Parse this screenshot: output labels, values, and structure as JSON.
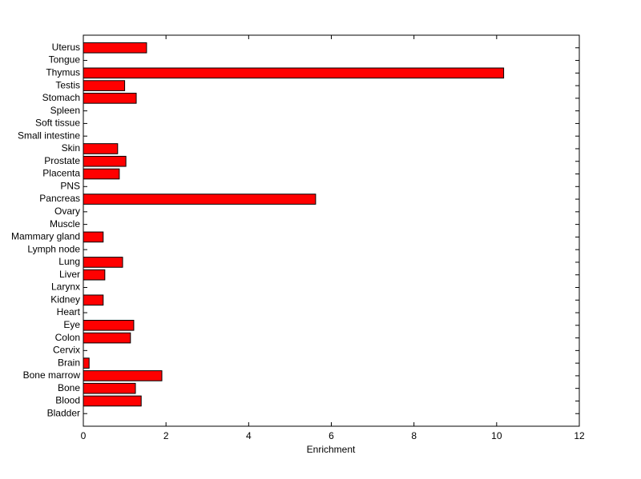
{
  "chart_data": {
    "type": "barh",
    "xlabel": "Enrichment",
    "categories": [
      "Bladder",
      "Blood",
      "Bone",
      "Bone marrow",
      "Brain",
      "Cervix",
      "Colon",
      "Eye",
      "Heart",
      "Kidney",
      "Larynx",
      "Liver",
      "Lung",
      "Lymph node",
      "Mammary gland",
      "Muscle",
      "Ovary",
      "Pancreas",
      "PNS",
      "Placenta",
      "Prostate",
      "Skin",
      "Small intestine",
      "Soft tissue",
      "Spleen",
      "Stomach",
      "Testis",
      "Thymus",
      "Tongue",
      "Uterus"
    ],
    "values": [
      0,
      1.4,
      1.26,
      1.9,
      0.14,
      0,
      1.14,
      1.22,
      0,
      0.48,
      0,
      0.52,
      0.95,
      0,
      0.48,
      0,
      0,
      5.62,
      0,
      0.87,
      1.03,
      0.83,
      0,
      0,
      0,
      1.28,
      1.0,
      10.17,
      0,
      1.53
    ],
    "color": "#ff0000",
    "xlim": [
      0,
      12
    ],
    "xticks": [
      0,
      2,
      4,
      6,
      8,
      10,
      12
    ]
  }
}
